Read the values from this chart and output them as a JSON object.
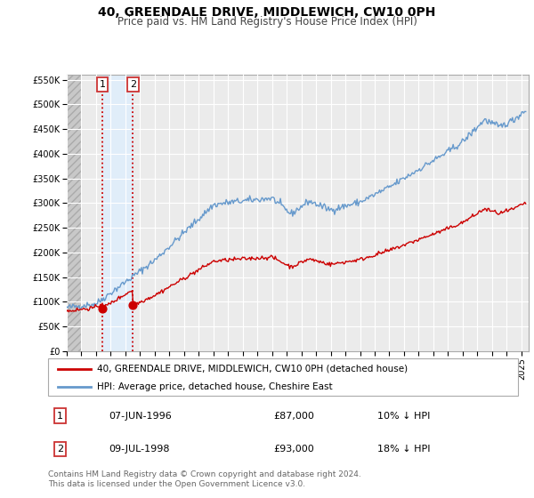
{
  "title": "40, GREENDALE DRIVE, MIDDLEWICH, CW10 0PH",
  "subtitle": "Price paid vs. HM Land Registry's House Price Index (HPI)",
  "legend_label_red": "40, GREENDALE DRIVE, MIDDLEWICH, CW10 0PH (detached house)",
  "legend_label_blue": "HPI: Average price, detached house, Cheshire East",
  "transaction1_label": "07-JUN-1996",
  "transaction1_price": "£87,000",
  "transaction1_hpi": "10% ↓ HPI",
  "transaction2_label": "09-JUL-1998",
  "transaction2_price": "£93,000",
  "transaction2_hpi": "18% ↓ HPI",
  "footer": "Contains HM Land Registry data © Crown copyright and database right 2024.\nThis data is licensed under the Open Government Licence v3.0.",
  "ylim_min": 0,
  "ylim_max": 560000,
  "yticks": [
    0,
    50000,
    100000,
    150000,
    200000,
    250000,
    300000,
    350000,
    400000,
    450000,
    500000,
    550000
  ],
  "ytick_labels": [
    "£0",
    "£50K",
    "£100K",
    "£150K",
    "£200K",
    "£250K",
    "£300K",
    "£350K",
    "£400K",
    "£450K",
    "£500K",
    "£550K"
  ],
  "transaction1_year": 1996.44,
  "transaction1_value": 87000,
  "transaction2_year": 1998.52,
  "transaction2_value": 93000,
  "background_color": "#ffffff",
  "plot_bg_color": "#ebebeb",
  "grid_color": "#ffffff",
  "red_color": "#cc0000",
  "blue_color": "#6699cc",
  "hatch_color": "#d0d0d0",
  "xlim_min": 1994,
  "xlim_max": 2025.5,
  "title_fontsize": 10,
  "subtitle_fontsize": 8.5,
  "tick_fontsize": 7,
  "legend_fontsize": 7.5,
  "table_fontsize": 8,
  "footer_fontsize": 6.5
}
